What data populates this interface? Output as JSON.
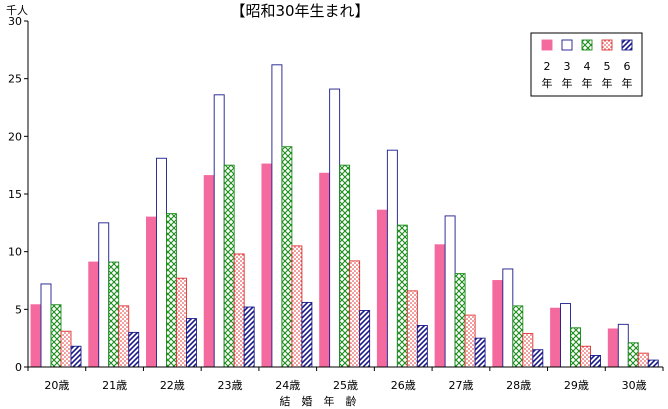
{
  "chart_data": {
    "type": "bar",
    "title": "【昭和30年生まれ】",
    "unit_label": "千人",
    "xlabel": "結　婚　年　齢",
    "ylim": [
      0,
      30
    ],
    "yticks": [
      0,
      5,
      10,
      15,
      20,
      25,
      30
    ],
    "grid": false,
    "legend_position": "top-right",
    "categories": [
      "20歳",
      "21歳",
      "22歳",
      "23歳",
      "24歳",
      "25歳",
      "26歳",
      "27歳",
      "28歳",
      "29歳",
      "30歳"
    ],
    "series": [
      {
        "name": "2年",
        "color": "#f56a9e",
        "pattern": "solid",
        "values": [
          5.4,
          9.1,
          13.0,
          16.6,
          17.6,
          16.8,
          13.6,
          10.6,
          7.5,
          5.1,
          3.3
        ]
      },
      {
        "name": "3年",
        "color": "#1a1a8c",
        "pattern": "open",
        "values": [
          7.2,
          12.5,
          18.1,
          23.6,
          26.2,
          24.1,
          18.8,
          13.1,
          8.5,
          5.5,
          3.7
        ]
      },
      {
        "name": "4年",
        "color": "#1a8c1a",
        "pattern": "crosshatch",
        "values": [
          5.4,
          9.1,
          13.3,
          17.5,
          19.1,
          17.5,
          12.3,
          8.1,
          5.3,
          3.4,
          2.1
        ]
      },
      {
        "name": "5年",
        "color": "#e03030",
        "pattern": "dots",
        "values": [
          3.1,
          5.3,
          7.7,
          9.8,
          10.5,
          9.2,
          6.6,
          4.5,
          2.9,
          1.8,
          1.2
        ]
      },
      {
        "name": "6年",
        "color": "#1a1a8c",
        "pattern": "diagonal",
        "values": [
          1.8,
          3.0,
          4.2,
          5.2,
          5.6,
          4.9,
          3.6,
          2.5,
          1.5,
          1.0,
          0.6
        ]
      }
    ]
  }
}
